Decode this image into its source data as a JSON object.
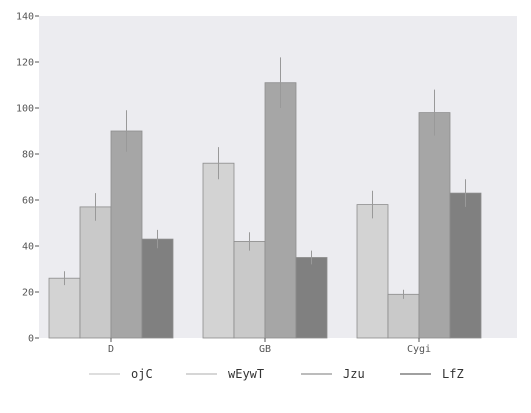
{
  "chart_data": {
    "type": "bar",
    "categories": [
      "D",
      "GB",
      "Cygi"
    ],
    "series": [
      {
        "name": "ojC",
        "color": "#d3d3d3",
        "values": [
          26,
          76,
          58
        ],
        "errors": [
          3,
          7,
          6
        ]
      },
      {
        "name": "wEywT",
        "color": "#c9c9c9",
        "values": [
          57,
          42,
          19
        ],
        "errors": [
          6,
          4,
          2
        ]
      },
      {
        "name": "Jzu",
        "color": "#a6a6a6",
        "values": [
          90,
          111,
          98
        ],
        "errors": [
          9,
          11,
          10
        ]
      },
      {
        "name": "LfZ",
        "color": "#808080",
        "values": [
          43,
          35,
          63
        ],
        "errors": [
          4,
          3,
          6
        ]
      }
    ],
    "ylim": [
      0,
      140
    ],
    "yticks": [
      0,
      20,
      40,
      60,
      80,
      100,
      120,
      140
    ],
    "xlabel": "",
    "ylabel": "",
    "grid": false,
    "legend_position": "bottom",
    "plot_background": "#ececf0",
    "error_bar_color": "#999999"
  }
}
